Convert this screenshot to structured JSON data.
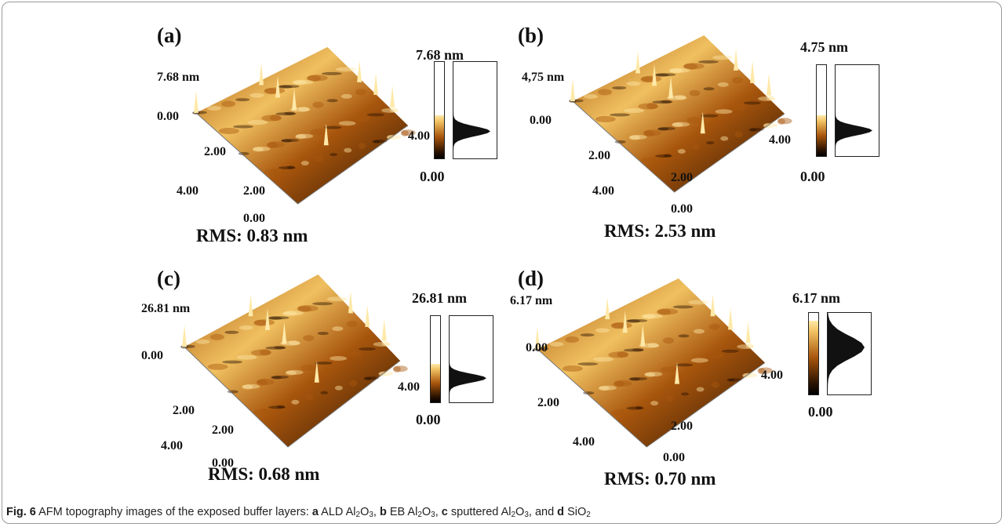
{
  "panels": [
    {
      "label": "(a)",
      "z_top": "7.68 nm",
      "z_zero": "0.00",
      "scale_max": "7.68 nm",
      "scale_min": "0.00",
      "ticks": [
        "2.00",
        "4.00",
        "0.00",
        "2.00",
        "4.00"
      ],
      "rms": "RMS: 0.83 nm"
    },
    {
      "label": "(b)",
      "z_top": "4,75 nm",
      "z_zero": "0.00",
      "scale_max": "4.75 nm",
      "scale_min": "0.00",
      "ticks": [
        "2.00",
        "4.00",
        "0.00",
        "2.00",
        "4.00"
      ],
      "rms": "RMS: 2.53 nm"
    },
    {
      "label": "(c)",
      "z_top": "26.81 nm",
      "z_zero": "0.00",
      "scale_max": "26.81 nm",
      "scale_min": "0.00",
      "ticks": [
        "2.00",
        "4.00",
        "0.00",
        "2.00",
        "4.00"
      ],
      "rms": "RMS: 0.68 nm"
    },
    {
      "label": "(d)",
      "z_top": "6.17 nm",
      "z_zero": "0.00",
      "scale_max": "6.17 nm",
      "scale_min": "0.00",
      "ticks": [
        "2.00",
        "4.00",
        "0.00",
        "2.00",
        "4.00"
      ],
      "rms": "RMS: 0.70 nm"
    }
  ],
  "caption": {
    "fig": "Fig. 6",
    "text": "AFM topography images of the exposed buffer layers:",
    "a": "a",
    "a_text": "ALD Al",
    "b": "b",
    "b_text": "EB Al",
    "c": "c",
    "c_text": "sputtered Al",
    "d": "d",
    "d_text": "SiO",
    "sub2": "2",
    "sub3": "3",
    "o": "O",
    "sep": ",",
    "and": ", and"
  },
  "colors": {
    "dark": "#2a1200",
    "mid": "#a8560d",
    "light": "#f0c060",
    "highlight": "#ffe9a8"
  }
}
